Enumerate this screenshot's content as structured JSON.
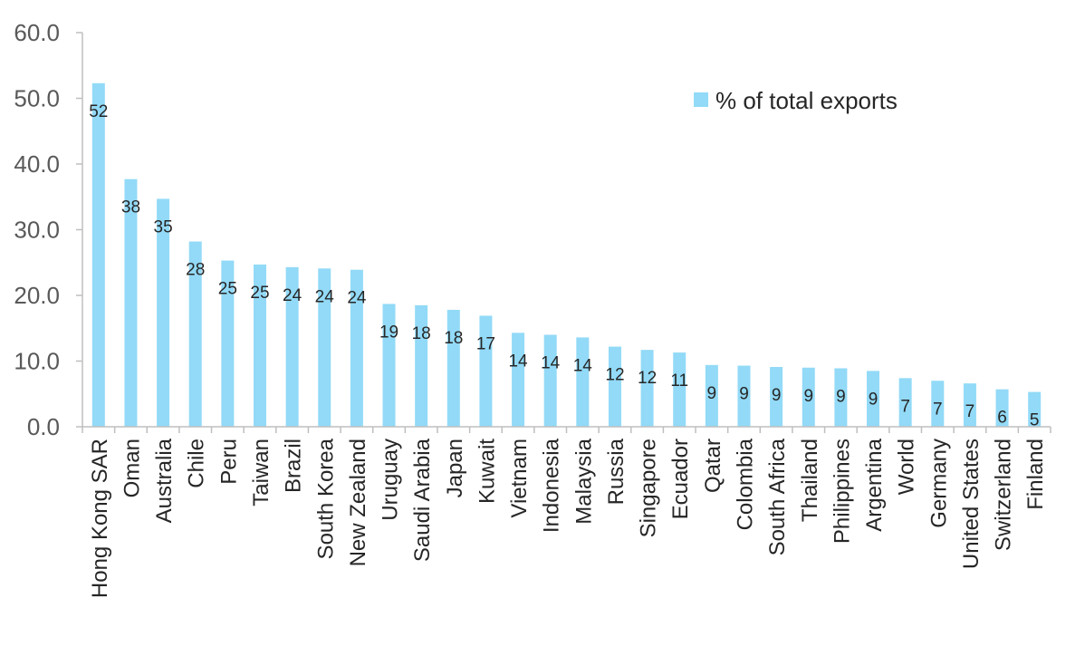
{
  "colors": {
    "bar": "#92DAF7",
    "axis": "#BFBFBF",
    "text": "#262626",
    "tick_text": "#595959"
  },
  "chart_data": {
    "type": "bar",
    "title": "",
    "xlabel": "",
    "ylabel": "",
    "ylim": [
      0,
      60
    ],
    "yticks": [
      "0.0",
      "10.0",
      "20.0",
      "30.0",
      "40.0",
      "50.0",
      "60.0"
    ],
    "ytick_values": [
      0,
      10,
      20,
      30,
      40,
      50,
      60
    ],
    "grid": false,
    "legend_position": "top-right",
    "categories": [
      "Hong Kong SAR",
      "Oman",
      "Australia",
      "Chile",
      "Peru",
      "Taiwan",
      "Brazil",
      "South Korea",
      "New Zealand",
      "Uruguay",
      "Saudi Arabia",
      "Japan",
      "Kuwait",
      "Vietnam",
      "Indonesia",
      "Malaysia",
      "Russia",
      "Singapore",
      "Ecuador",
      "Qatar",
      "Colombia",
      "South Africa",
      "Thailand",
      "Philippines",
      "Argentina",
      "World",
      "Germany",
      "United States",
      "Switzerland",
      "Finland"
    ],
    "series": [
      {
        "name": "% of total exports",
        "values": [
          52.3,
          37.7,
          34.7,
          28.2,
          25.3,
          24.7,
          24.3,
          24.1,
          23.9,
          18.7,
          18.5,
          17.8,
          16.9,
          14.3,
          14.0,
          13.6,
          12.2,
          11.7,
          11.3,
          9.4,
          9.3,
          9.1,
          9.0,
          8.9,
          8.5,
          7.4,
          7.0,
          6.6,
          5.7,
          5.3
        ],
        "labels": [
          "52",
          "38",
          "35",
          "28",
          "25",
          "25",
          "24",
          "24",
          "24",
          "19",
          "18",
          "18",
          "17",
          "14",
          "14",
          "14",
          "12",
          "12",
          "11",
          "9",
          "9",
          "9",
          "9",
          "9",
          "9",
          "7",
          "7",
          "7",
          "6",
          "5"
        ]
      }
    ]
  }
}
